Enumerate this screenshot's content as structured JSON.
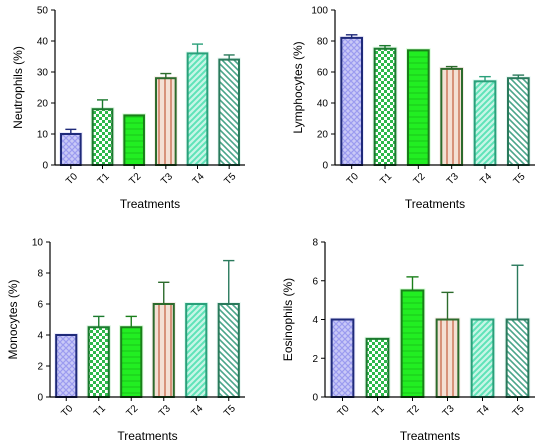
{
  "colors": {
    "T0": {
      "fill": "#9c9cf0",
      "edge": "#1f2a7a",
      "pattern": "crosshatch"
    },
    "T1": {
      "fill": "#2db84a",
      "edge": "#1b7a2e",
      "pattern": "checker"
    },
    "T2": {
      "fill": "#22ee22",
      "edge": "#1a7f1a",
      "pattern": "horizontal"
    },
    "T3": {
      "fill": "#d8a08a",
      "edge": "#2c6b2c",
      "pattern": "vertical"
    },
    "T4": {
      "fill": "#5fe3b8",
      "edge": "#2aa07a",
      "pattern": "diag-down"
    },
    "T5": {
      "fill": "#8fd9c2",
      "edge": "#2a7a5c",
      "pattern": "diag-up"
    }
  },
  "chart_data": [
    {
      "type": "bar",
      "ylabel": "Neutrophils (%)",
      "xlabel": "Treatments",
      "categories": [
        "T0",
        "T1",
        "T2",
        "T3",
        "T4",
        "T5"
      ],
      "values": [
        10,
        18,
        16,
        28,
        36,
        34
      ],
      "errors": [
        1.5,
        3,
        0,
        1.5,
        3,
        1.5
      ],
      "ylim": [
        0,
        50
      ],
      "yticks": [
        0,
        10,
        20,
        30,
        40,
        50
      ],
      "ytick_labels": [
        "0",
        "10",
        "20",
        "30",
        "40",
        "50"
      ]
    },
    {
      "type": "bar",
      "ylabel": "Lymphocytes (%)",
      "xlabel": "Treatments",
      "categories": [
        "T0",
        "T1",
        "T2",
        "T3",
        "T4",
        "T5"
      ],
      "values": [
        82,
        75,
        74,
        62,
        54,
        56
      ],
      "errors": [
        2,
        2,
        0,
        1.5,
        3,
        2
      ],
      "ylim": [
        0,
        100
      ],
      "yticks": [
        0,
        20,
        40,
        60,
        80,
        100
      ],
      "ytick_labels": [
        "0",
        "20",
        "40",
        "60",
        "80",
        "100"
      ]
    },
    {
      "type": "bar",
      "ylabel": "Monocytes (%)",
      "xlabel": "Treatments",
      "categories": [
        "T0",
        "T1",
        "T2",
        "T3",
        "T4",
        "T5"
      ],
      "values": [
        4,
        4.5,
        4.5,
        6,
        6,
        6
      ],
      "errors": [
        0,
        0.7,
        0.7,
        1.4,
        0,
        2.8
      ],
      "ylim": [
        0,
        10
      ],
      "yticks": [
        0,
        2,
        4,
        6,
        8,
        10
      ],
      "ytick_labels": [
        "0",
        "2",
        "4",
        "6",
        "8",
        "10"
      ]
    },
    {
      "type": "bar",
      "ylabel": "Eosinophils (%)",
      "xlabel": "Treatments",
      "categories": [
        "T0",
        "T1",
        "T2",
        "T3",
        "T4",
        "T5"
      ],
      "values": [
        4,
        3,
        5.5,
        4,
        4,
        4
      ],
      "errors": [
        0,
        0,
        0.7,
        1.4,
        0,
        2.8
      ],
      "ylim": [
        0,
        8
      ],
      "yticks": [
        0,
        2,
        4,
        6,
        8
      ],
      "ytick_labels": [
        "0",
        "2",
        "4",
        "6",
        "8"
      ]
    }
  ]
}
